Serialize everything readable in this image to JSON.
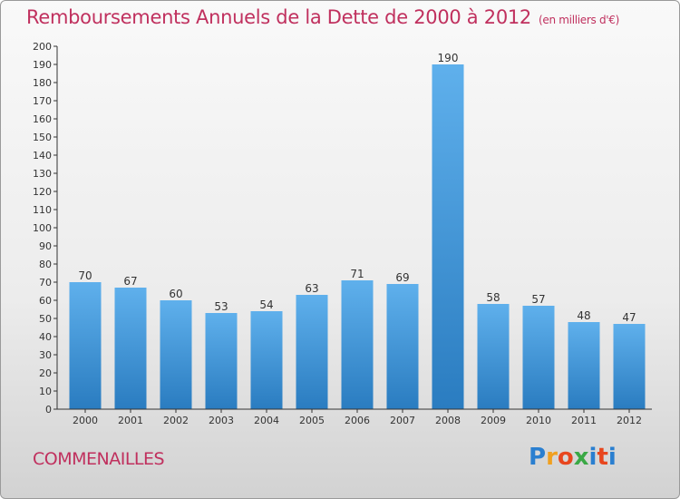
{
  "chart_data": {
    "type": "bar",
    "title": "Remboursements Annuels de la Dette de 2000 à 2012",
    "subtitle": "(en milliers d'€)",
    "categories": [
      "2000",
      "2001",
      "2002",
      "2003",
      "2004",
      "2005",
      "2006",
      "2007",
      "2008",
      "2009",
      "2010",
      "2011",
      "2012"
    ],
    "values": [
      70,
      67,
      60,
      53,
      54,
      63,
      71,
      69,
      190,
      58,
      57,
      48,
      47
    ],
    "ylim": [
      0,
      200
    ],
    "ytick_step": 10,
    "xlabel": "",
    "ylabel": "",
    "grid": false,
    "bar_color": "#3a92d8"
  },
  "commune": "COMMENAILLES",
  "logo": {
    "letters": [
      "P",
      "r",
      "o",
      "x",
      "i",
      "t",
      "i"
    ],
    "colors": [
      "#2a7fd0",
      "#f0a020",
      "#e8461e",
      "#3aa845",
      "#2a7fd0",
      "#e8461e",
      "#2a7fd0"
    ]
  }
}
